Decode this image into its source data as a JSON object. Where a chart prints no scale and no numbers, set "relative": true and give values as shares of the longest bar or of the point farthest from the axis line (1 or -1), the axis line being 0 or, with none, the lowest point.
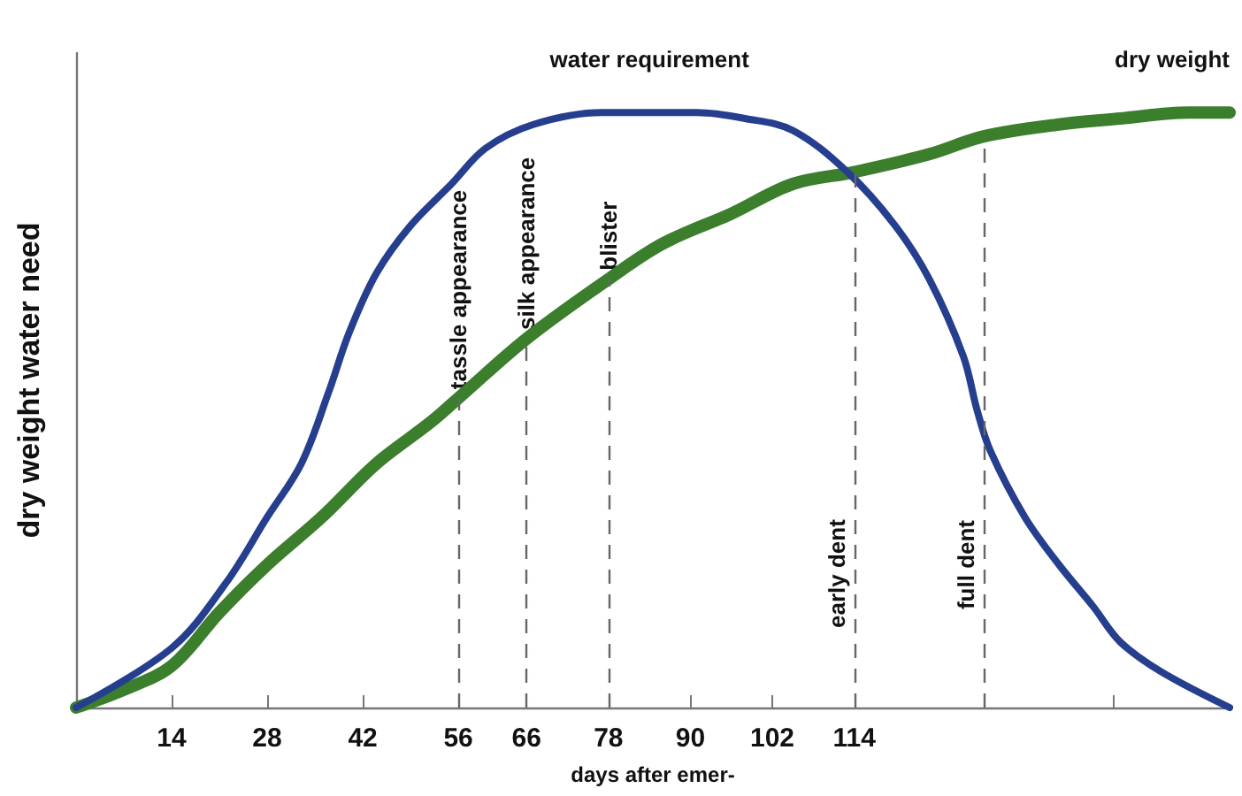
{
  "chart_data": {
    "type": "line",
    "relative": true,
    "xlabel": "days after emer-",
    "ylabel": "dry weight water need",
    "xlim": [
      0,
      169
    ],
    "xticks": [
      {
        "value": 0,
        "label": null
      },
      14,
      28,
      42,
      56,
      66,
      78,
      90,
      102,
      114,
      {
        "value": 133,
        "label": null
      },
      {
        "value": 152,
        "label": null
      }
    ],
    "series": [
      {
        "name": "water requirement",
        "color": "#263e8e",
        "x": [
          0,
          14,
          22,
          28,
          33,
          37,
          40,
          44,
          49,
          55,
          60,
          67,
          77,
          91,
          98,
          105,
          113,
          120,
          125,
          130,
          132,
          134,
          139,
          144,
          149,
          153,
          159,
          169
        ],
        "values": [
          0,
          0.1,
          0.21,
          0.32,
          0.41,
          0.53,
          0.63,
          0.73,
          0.81,
          0.88,
          0.94,
          0.98,
          1.0,
          1.0,
          0.99,
          0.97,
          0.9,
          0.81,
          0.72,
          0.59,
          0.5,
          0.43,
          0.32,
          0.24,
          0.17,
          0.11,
          0.06,
          0
        ]
      },
      {
        "name": "dry weight",
        "color": "#3b7f2d",
        "x": [
          0,
          7,
          14,
          21,
          28,
          36,
          44,
          52,
          56,
          66,
          78,
          86,
          96,
          105,
          114,
          125,
          133,
          144,
          153,
          163,
          169
        ],
        "values": [
          0,
          0.03,
          0.07,
          0.16,
          0.24,
          0.32,
          0.41,
          0.48,
          0.52,
          0.62,
          0.72,
          0.78,
          0.83,
          0.88,
          0.9,
          0.93,
          0.96,
          0.98,
          0.99,
          1.0,
          1.0
        ]
      }
    ],
    "ref_lines": [
      {
        "axis": "x",
        "value": 56,
        "label": "tassle appearance",
        "color": "#666666",
        "line_style": "dashed"
      },
      {
        "axis": "x",
        "value": 66,
        "label": "silk appearance",
        "color": "#666666",
        "line_style": "dashed"
      },
      {
        "axis": "x",
        "value": 78,
        "label": "blister",
        "color": "#666666",
        "line_style": "dashed"
      },
      {
        "axis": "x",
        "value": 114,
        "label": "early dent",
        "color": "#666666",
        "line_style": "dashed"
      },
      {
        "axis": "x",
        "value": 133,
        "label": "full dent",
        "color": "#666666",
        "line_style": "dashed"
      }
    ]
  }
}
